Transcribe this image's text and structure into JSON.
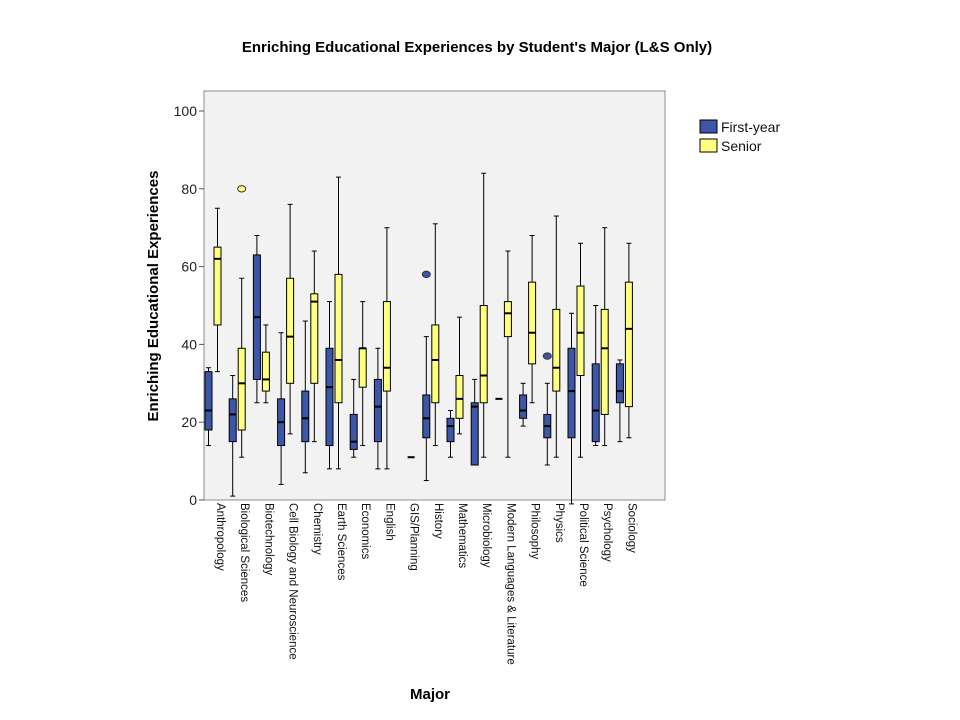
{
  "chart_data": {
    "type": "boxplot",
    "title": "Enriching Educational Experiences by Student's Major (L&S Only)",
    "xlabel": "Major",
    "ylabel": "Enriching Educational Experiences",
    "ylim": [
      0,
      105
    ],
    "yticks": [
      0,
      20,
      40,
      60,
      80,
      100
    ],
    "grid": false,
    "legend": "right",
    "categories": [
      "Anthropology",
      "Biological Sciences",
      "Biotechnology",
      "Cell Biology and Neuroscience",
      "Chemistry",
      "Earth Sciences",
      "Economics",
      "English",
      "GIS/Planning",
      "History",
      "Mathematics",
      "Microbiology",
      "Modern Languages & Literature",
      "Philosophy",
      "Physics",
      "Political Science",
      "Psychology",
      "Sociology"
    ],
    "series": [
      {
        "name": "First-year",
        "color": "#3d57a8",
        "boxes": [
          {
            "min": 14,
            "q1": 18,
            "median": 23,
            "q3": 33,
            "max": 34,
            "outliers": []
          },
          {
            "min": 1,
            "q1": 15,
            "median": 22,
            "q3": 26,
            "max": 32,
            "outliers": []
          },
          {
            "min": 25,
            "q1": 31,
            "median": 47,
            "q3": 63,
            "max": 68,
            "outliers": []
          },
          {
            "min": 4,
            "q1": 14,
            "median": 20,
            "q3": 26,
            "max": 43,
            "outliers": []
          },
          {
            "min": 7,
            "q1": 15,
            "median": 21,
            "q3": 28,
            "max": 46,
            "outliers": []
          },
          {
            "min": 8,
            "q1": 14,
            "median": 29,
            "q3": 39,
            "max": 51,
            "outliers": []
          },
          {
            "min": 11,
            "q1": 13,
            "median": 15,
            "q3": 22,
            "max": 31,
            "outliers": []
          },
          {
            "min": 8,
            "q1": 15,
            "median": 24,
            "q3": 31,
            "max": 39,
            "outliers": []
          },
          null,
          {
            "min": 5,
            "q1": 16,
            "median": 21,
            "q3": 27,
            "max": 42,
            "outliers": [
              58
            ]
          },
          {
            "min": 11,
            "q1": 15,
            "median": 19,
            "q3": 21,
            "max": 23,
            "outliers": []
          },
          {
            "min": 9,
            "q1": 9,
            "median": 24,
            "q3": 25,
            "max": 31,
            "outliers": []
          },
          {
            "min": 26,
            "q1": 26,
            "median": 26,
            "q3": 26,
            "max": 26,
            "outliers": []
          },
          {
            "min": 19,
            "q1": 21,
            "median": 23,
            "q3": 27,
            "max": 30,
            "outliers": []
          },
          {
            "min": 9,
            "q1": 16,
            "median": 19,
            "q3": 22,
            "max": 30,
            "outliers": [
              37
            ]
          },
          {
            "min": -1,
            "q1": 16,
            "median": 28,
            "q3": 39,
            "max": 48,
            "outliers": []
          },
          {
            "min": 14,
            "q1": 15,
            "median": 23,
            "q3": 35,
            "max": 50,
            "outliers": []
          },
          {
            "min": 15,
            "q1": 25,
            "median": 28,
            "q3": 35,
            "max": 36,
            "outliers": []
          }
        ]
      },
      {
        "name": "Senior",
        "color": "#ffff80",
        "boxes": [
          {
            "min": 33,
            "q1": 45,
            "median": 62,
            "q3": 65,
            "max": 75,
            "outliers": []
          },
          {
            "min": 11,
            "q1": 18,
            "median": 30,
            "q3": 39,
            "max": 57,
            "outliers": [
              80
            ]
          },
          {
            "min": 25,
            "q1": 28,
            "median": 31,
            "q3": 38,
            "max": 45,
            "outliers": []
          },
          {
            "min": 17,
            "q1": 30,
            "median": 42,
            "q3": 57,
            "max": 76,
            "outliers": []
          },
          {
            "min": 15,
            "q1": 30,
            "median": 51,
            "q3": 53,
            "max": 64,
            "outliers": []
          },
          {
            "min": 8,
            "q1": 25,
            "median": 36,
            "q3": 58,
            "max": 83,
            "outliers": []
          },
          {
            "min": 14,
            "q1": 29,
            "median": 39,
            "q3": 39,
            "max": 51,
            "outliers": []
          },
          {
            "min": 8,
            "q1": 28,
            "median": 34,
            "q3": 51,
            "max": 70,
            "outliers": []
          },
          {
            "min": 11,
            "q1": 11,
            "median": 11,
            "q3": 11,
            "max": 11,
            "outliers": []
          },
          {
            "min": 14,
            "q1": 25,
            "median": 36,
            "q3": 45,
            "max": 71,
            "outliers": []
          },
          {
            "min": 17,
            "q1": 21,
            "median": 26,
            "q3": 32,
            "max": 47,
            "outliers": []
          },
          {
            "min": 11,
            "q1": 25,
            "median": 32,
            "q3": 50,
            "max": 84,
            "outliers": []
          },
          {
            "min": 11,
            "q1": 42,
            "median": 48,
            "q3": 51,
            "max": 64,
            "outliers": []
          },
          {
            "min": 25,
            "q1": 35,
            "median": 43,
            "q3": 56,
            "max": 68,
            "outliers": []
          },
          {
            "min": 11,
            "q1": 28,
            "median": 34,
            "q3": 49,
            "max": 73,
            "outliers": []
          },
          {
            "min": 11,
            "q1": 32,
            "median": 43,
            "q3": 55,
            "max": 66,
            "outliers": []
          },
          {
            "min": 14,
            "q1": 22,
            "median": 39,
            "q3": 49,
            "max": 70,
            "outliers": []
          },
          {
            "min": 16,
            "q1": 24,
            "median": 44,
            "q3": 56,
            "max": 66,
            "outliers": []
          }
        ]
      }
    ]
  }
}
